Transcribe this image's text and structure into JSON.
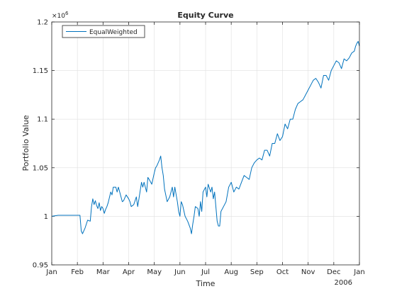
{
  "chart_data": {
    "type": "line",
    "title": "Equity Curve",
    "xlabel": "Time",
    "ylabel": "Portfolio Value",
    "y_exponent_label": "×10",
    "y_exponent_power": "6",
    "x_year_label": "2006",
    "grid": true,
    "legend_placement": "top-left",
    "xlim": [
      "Jan",
      "Jan"
    ],
    "ylim": [
      0.95,
      1.2
    ],
    "x_ticks": [
      "Jan",
      "Feb",
      "Mar",
      "Apr",
      "May",
      "Jun",
      "Jul",
      "Aug",
      "Sep",
      "Oct",
      "Nov",
      "Dec",
      "Jan"
    ],
    "y_ticks": [
      "0.95",
      "1",
      "1.05",
      "1.1",
      "1.15",
      "1.2"
    ],
    "series": [
      {
        "name": "EqualWeighted",
        "color": "#0072bd",
        "x_unit": "months since start of year",
        "x": [
          0.0,
          0.25,
          0.5,
          0.75,
          1.0,
          1.1,
          1.15,
          1.2,
          1.3,
          1.4,
          1.5,
          1.55,
          1.6,
          1.65,
          1.7,
          1.75,
          1.8,
          1.85,
          1.9,
          1.95,
          2.0,
          2.05,
          2.1,
          2.15,
          2.2,
          2.3,
          2.35,
          2.4,
          2.5,
          2.55,
          2.6,
          2.7,
          2.75,
          2.8,
          2.9,
          3.0,
          3.05,
          3.1,
          3.2,
          3.3,
          3.35,
          3.4,
          3.5,
          3.55,
          3.6,
          3.7,
          3.75,
          3.8,
          3.9,
          4.0,
          4.05,
          4.1,
          4.2,
          4.25,
          4.3,
          4.35,
          4.4,
          4.5,
          4.6,
          4.7,
          4.75,
          4.8,
          4.9,
          4.95,
          5.0,
          5.05,
          5.1,
          5.2,
          5.3,
          5.4,
          5.45,
          5.5,
          5.55,
          5.6,
          5.7,
          5.75,
          5.8,
          5.85,
          5.9,
          6.0,
          6.05,
          6.1,
          6.2,
          6.25,
          6.3,
          6.35,
          6.4,
          6.45,
          6.5,
          6.55,
          6.6,
          6.7,
          6.8,
          6.9,
          7.0,
          7.1,
          7.2,
          7.3,
          7.4,
          7.5,
          7.6,
          7.7,
          7.8,
          7.9,
          8.0,
          8.1,
          8.2,
          8.3,
          8.4,
          8.5,
          8.6,
          8.7,
          8.8,
          8.9,
          9.0,
          9.1,
          9.2,
          9.3,
          9.4,
          9.5,
          9.6,
          9.7,
          9.8,
          9.9,
          10.0,
          10.1,
          10.2,
          10.3,
          10.4,
          10.5,
          10.6,
          10.7,
          10.8,
          10.9,
          11.0,
          11.1,
          11.2,
          11.3,
          11.4,
          11.5,
          11.6,
          11.7,
          11.8,
          11.85,
          11.9,
          11.95,
          12.0
        ],
        "y": [
          1.0,
          1.001,
          1.001,
          1.001,
          1.001,
          1.001,
          0.985,
          0.982,
          0.988,
          0.996,
          0.995,
          1.01,
          1.018,
          1.012,
          1.016,
          1.011,
          1.008,
          1.014,
          1.006,
          1.01,
          1.008,
          1.003,
          1.007,
          1.01,
          1.014,
          1.025,
          1.022,
          1.03,
          1.03,
          1.025,
          1.03,
          1.02,
          1.015,
          1.016,
          1.022,
          1.018,
          1.015,
          1.01,
          1.012,
          1.02,
          1.01,
          1.018,
          1.035,
          1.03,
          1.035,
          1.025,
          1.04,
          1.038,
          1.033,
          1.045,
          1.05,
          1.052,
          1.058,
          1.062,
          1.05,
          1.042,
          1.028,
          1.015,
          1.02,
          1.03,
          1.02,
          1.03,
          1.015,
          1.005,
          1.0,
          1.015,
          1.012,
          1.0,
          0.995,
          0.988,
          0.982,
          0.992,
          1.0,
          1.01,
          1.008,
          1.0,
          1.015,
          1.005,
          1.025,
          1.03,
          1.02,
          1.033,
          1.025,
          1.03,
          1.018,
          1.025,
          1.01,
          0.995,
          0.99,
          0.99,
          1.005,
          1.01,
          1.015,
          1.03,
          1.035,
          1.025,
          1.03,
          1.028,
          1.035,
          1.042,
          1.04,
          1.038,
          1.05,
          1.055,
          1.058,
          1.06,
          1.058,
          1.068,
          1.068,
          1.062,
          1.075,
          1.075,
          1.085,
          1.078,
          1.082,
          1.095,
          1.09,
          1.1,
          1.1,
          1.11,
          1.116,
          1.118,
          1.12,
          1.125,
          1.13,
          1.135,
          1.14,
          1.142,
          1.138,
          1.132,
          1.145,
          1.145,
          1.14,
          1.15,
          1.155,
          1.16,
          1.158,
          1.152,
          1.162,
          1.16,
          1.163,
          1.168,
          1.17,
          1.175,
          1.178,
          1.18,
          1.175
        ]
      }
    ]
  }
}
